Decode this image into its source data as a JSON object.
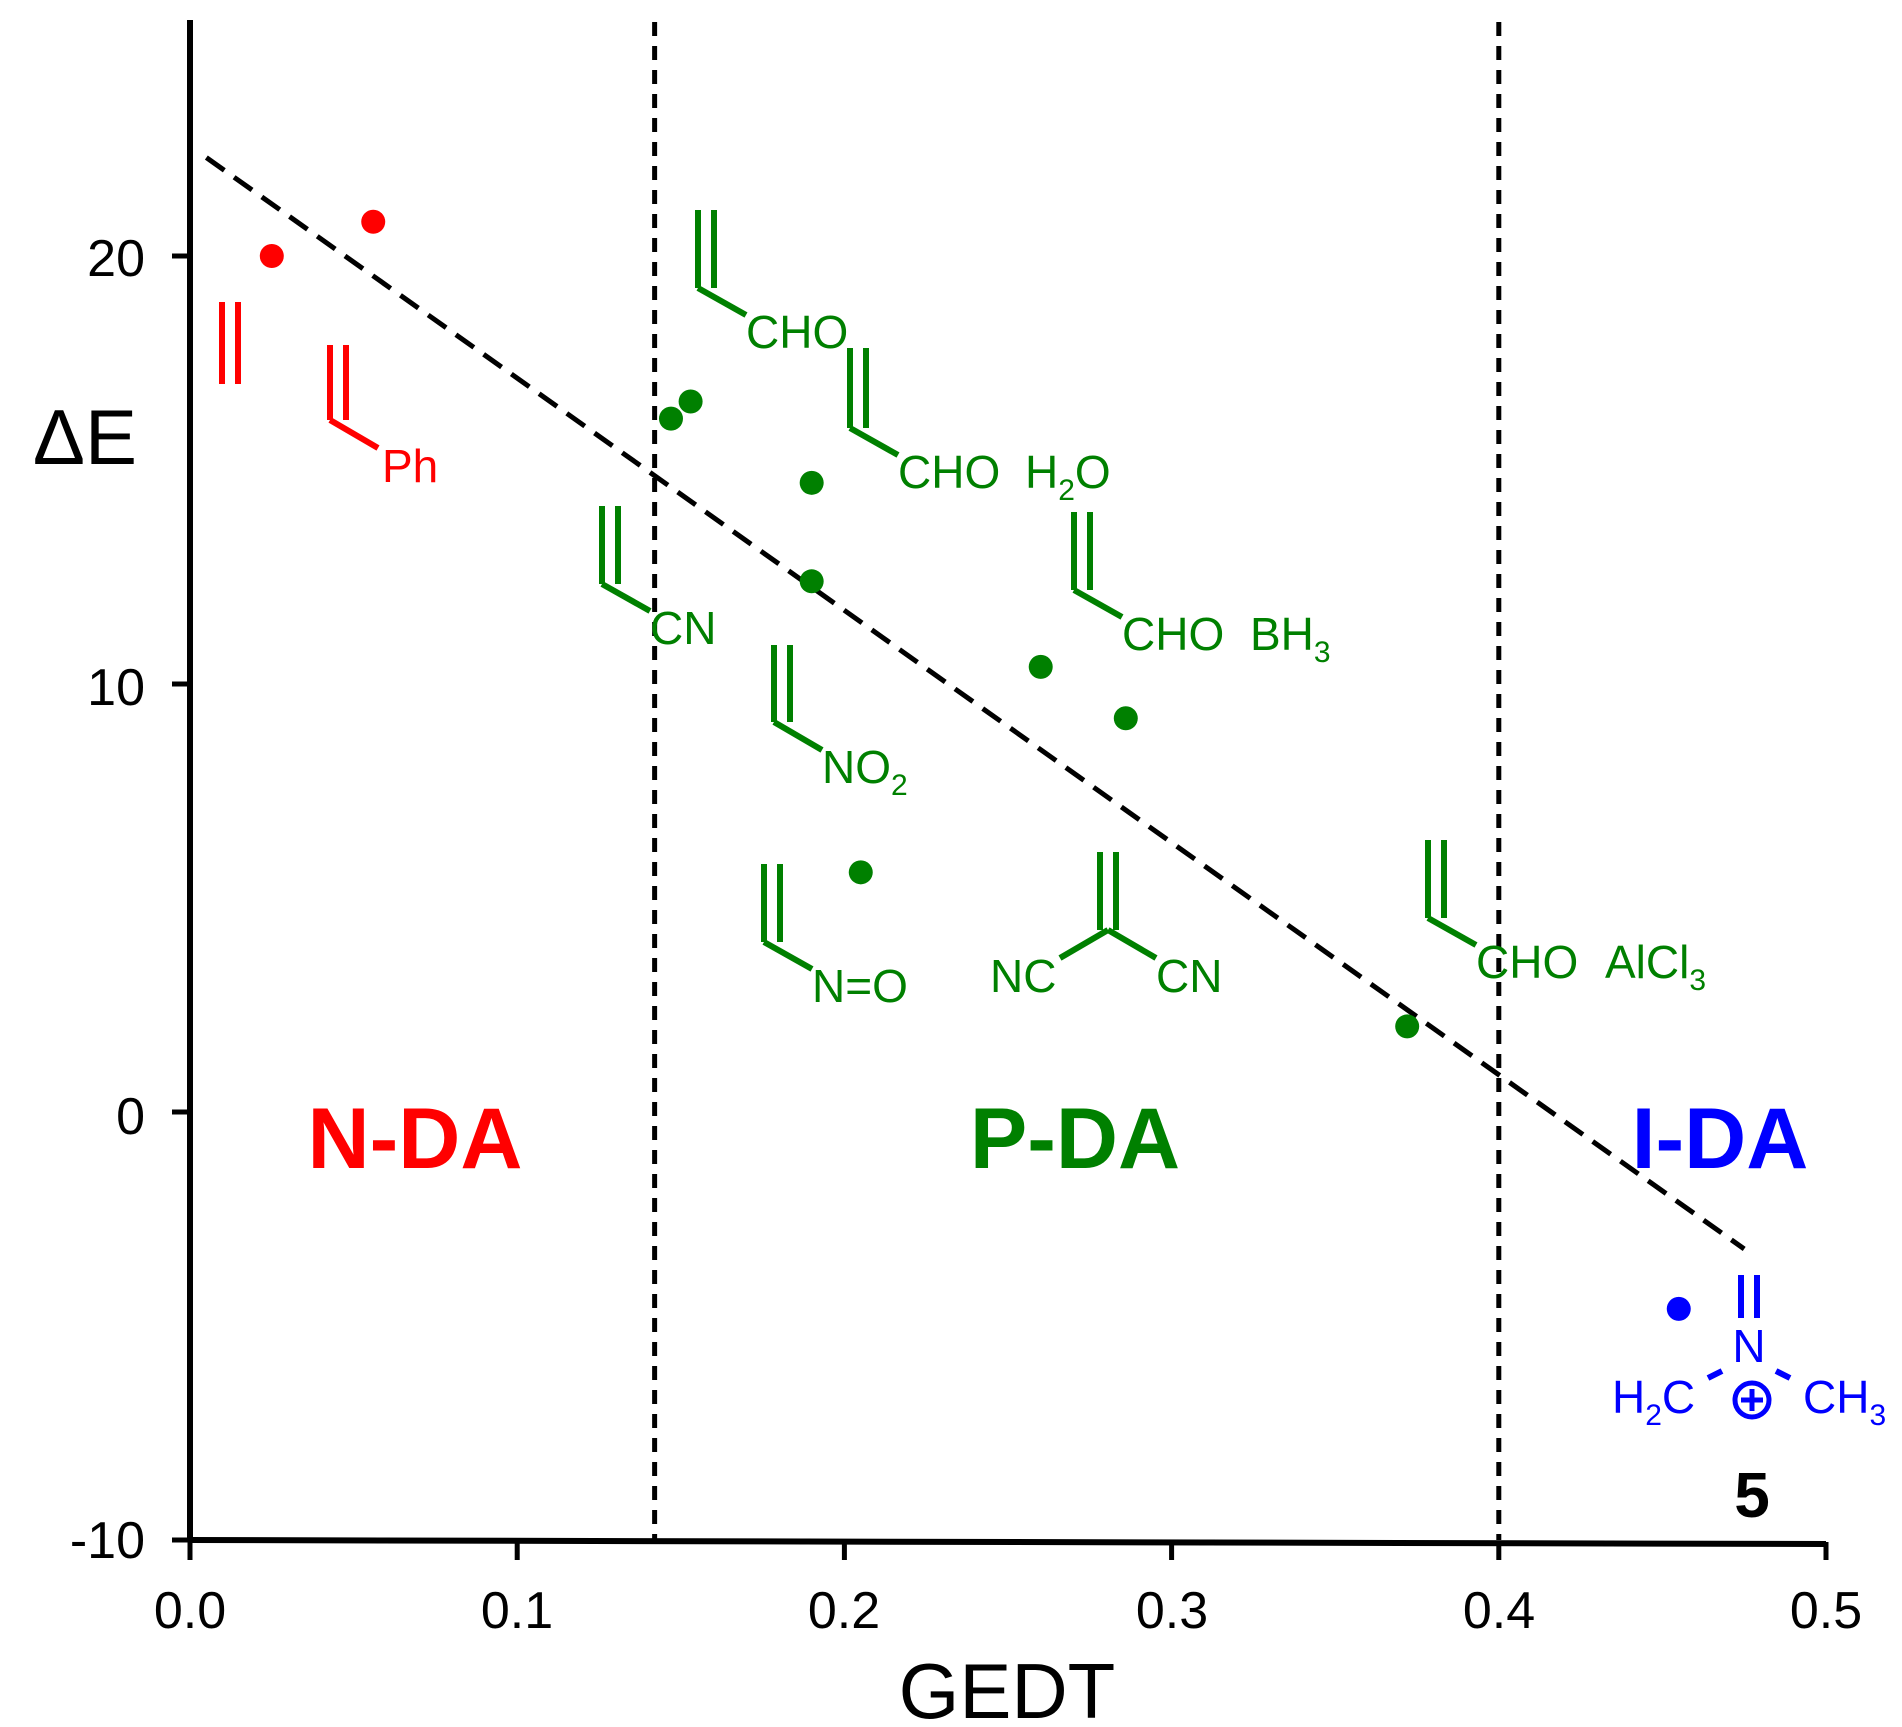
{
  "chart_data": {
    "type": "scatter",
    "xlabel": "GEDT",
    "ylabel": "ΔE",
    "xlim": [
      0.0,
      0.5
    ],
    "ylim": [
      -10,
      25
    ],
    "x_ticks": [
      "0.0",
      "0.1",
      "0.2",
      "0.3",
      "0.4",
      "0.5"
    ],
    "y_ticks": [
      "-10",
      "0",
      "10",
      "20"
    ],
    "grid": false,
    "series": [
      {
        "name": "N-DA",
        "color": "#ff0000",
        "points": [
          {
            "x": 0.025,
            "y": 20.0
          },
          {
            "x": 0.056,
            "y": 20.8
          }
        ]
      },
      {
        "name": "P-DA",
        "color": "#008000",
        "points": [
          {
            "x": 0.147,
            "y": 16.2
          },
          {
            "x": 0.153,
            "y": 16.6
          },
          {
            "x": 0.19,
            "y": 14.7
          },
          {
            "x": 0.19,
            "y": 12.4
          },
          {
            "x": 0.205,
            "y": 5.6
          },
          {
            "x": 0.26,
            "y": 10.4
          },
          {
            "x": 0.286,
            "y": 9.2
          },
          {
            "x": 0.372,
            "y": 2.0
          }
        ]
      },
      {
        "name": "I-DA",
        "color": "#0000ff",
        "points": [
          {
            "x": 0.455,
            "y": -4.6
          }
        ]
      }
    ],
    "trendline": {
      "style": "dashed",
      "x": [
        0.005,
        0.475
      ],
      "y": [
        22.3,
        -3.2
      ]
    },
    "vertical_lines": [
      {
        "x": 0.142,
        "style": "dotted"
      },
      {
        "x": 0.4,
        "style": "dotted"
      }
    ],
    "regions": [
      {
        "label": "N-DA",
        "color": "#ff0000"
      },
      {
        "label": "P-DA",
        "color": "#008000"
      },
      {
        "label": "I-DA",
        "color": "#0000ff"
      }
    ],
    "annotations": {
      "ph": "Ph",
      "cho1": "CHO",
      "cho2": "CHO",
      "h2o_h": "H",
      "h2o_sub": "2",
      "h2o_o": "O",
      "cn": "CN",
      "cho3": "CHO",
      "bh3_main": "BH",
      "bh3_sub": "3",
      "no2_main": "NO",
      "no2_sub": "2",
      "no": "N=O",
      "nc_left": "NC",
      "cn_right": "CN",
      "cho4": "CHO",
      "alcl3_main": "AlCl",
      "alcl3_sub": "3",
      "n_atom": "N",
      "h2c_h": "H",
      "h2c_sub": "2",
      "h2c_c": "C",
      "ch3_main": "CH",
      "ch3_sub": "3",
      "compound_number": "5"
    }
  }
}
